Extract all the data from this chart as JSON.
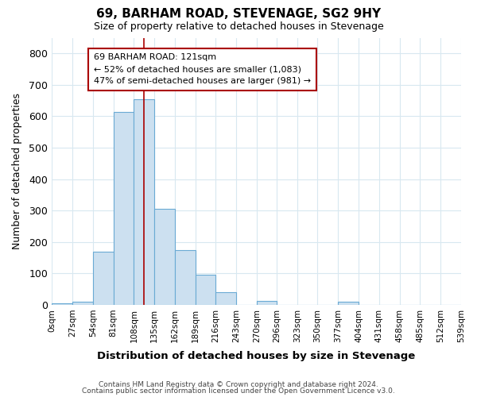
{
  "title": "69, BARHAM ROAD, STEVENAGE, SG2 9HY",
  "subtitle": "Size of property relative to detached houses in Stevenage",
  "xlabel": "Distribution of detached houses by size in Stevenage",
  "ylabel": "Number of detached properties",
  "annotation_line1": "69 BARHAM ROAD: 121sqm",
  "annotation_line2": "← 52% of detached houses are smaller (1,083)",
  "annotation_line3": "47% of semi-detached houses are larger (981) →",
  "footer_line1": "Contains HM Land Registry data © Crown copyright and database right 2024.",
  "footer_line2": "Contains public sector information licensed under the Open Government Licence v3.0.",
  "bar_color": "#cce0f0",
  "bar_edge_color": "#6aaad4",
  "marker_line_color": "#aa0000",
  "annotation_box_edge_color": "#aa0000",
  "bins": [
    0,
    27,
    54,
    81,
    108,
    135,
    162,
    189,
    216,
    243,
    270,
    296,
    323,
    350,
    377,
    404,
    431,
    458,
    485,
    512,
    539
  ],
  "counts": [
    5,
    10,
    170,
    615,
    655,
    305,
    175,
    95,
    40,
    0,
    12,
    0,
    0,
    0,
    10,
    0,
    0,
    0,
    0,
    0
  ],
  "ylim": [
    0,
    850
  ],
  "yticks": [
    0,
    100,
    200,
    300,
    400,
    500,
    600,
    700,
    800
  ],
  "property_size": 121,
  "background_color": "#ffffff",
  "grid_color": "#d8e8f0"
}
